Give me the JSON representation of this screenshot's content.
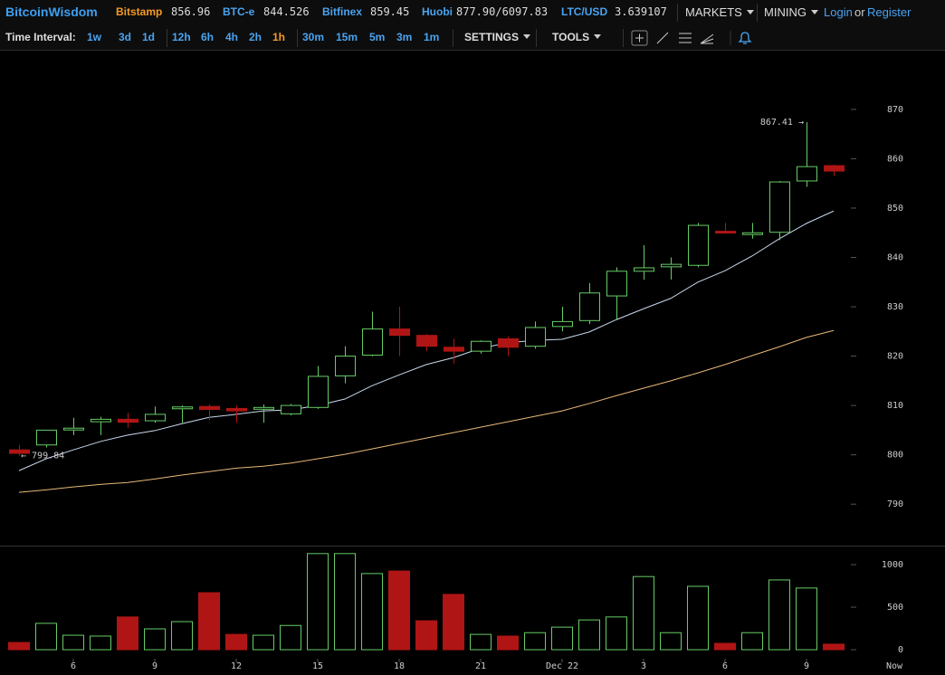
{
  "header": {
    "brand": "BitcoinWisdom",
    "tickers": [
      {
        "name": "Bitstamp",
        "price": "856.96"
      },
      {
        "name": "BTC-e",
        "price": "844.526"
      },
      {
        "name": "Bitfinex",
        "price": "859.45"
      },
      {
        "name": "Huobi",
        "price": "877.90/6097.83"
      },
      {
        "name": "LTC/USD",
        "price": "3.639107"
      }
    ],
    "menus": [
      "MARKETS",
      "MINING"
    ],
    "login": "Login",
    "or": "or",
    "register": "Register"
  },
  "toolbar": {
    "label": "Time Interval:",
    "intervals": [
      "1w",
      "3d",
      "1d",
      "12h",
      "6h",
      "4h",
      "2h",
      "1h",
      "30m",
      "15m",
      "5m",
      "3m",
      "1m"
    ],
    "active_interval": "1h",
    "settings": "SETTINGS",
    "tools": "TOOLS"
  },
  "chart_data": {
    "type": "candlestick",
    "categories": [
      null,
      null,
      "6",
      null,
      null,
      "9",
      null,
      null,
      "12",
      null,
      null,
      "15",
      null,
      null,
      "18",
      null,
      null,
      "21",
      null,
      null,
      "Dec 22",
      null,
      null,
      "3",
      null,
      null,
      "6",
      null,
      null,
      "9",
      null
    ],
    "x_end_label": "Now",
    "open": [
      801,
      802,
      805.1,
      806.7,
      807.2,
      806.9,
      809.4,
      809.8,
      809.4,
      809.3,
      808.3,
      809.6,
      816,
      820.2,
      825.5,
      824.2,
      821.8,
      821,
      823.5,
      822,
      826,
      827.2,
      832.2,
      837.2,
      838.1,
      838.4,
      845.3,
      844.8,
      845.1,
      855.5,
      858.6
    ],
    "high": [
      802,
      805,
      807.5,
      807.7,
      808.5,
      809.8,
      810,
      810.2,
      810,
      810.2,
      810.3,
      818,
      822,
      829,
      830,
      824.5,
      823.5,
      823.2,
      824,
      827,
      830,
      834.8,
      838,
      842.5,
      840,
      847,
      847,
      847,
      855.5,
      867.41,
      858.8
    ],
    "low": [
      799.84,
      801.5,
      804,
      804,
      805.5,
      806.5,
      806.5,
      807,
      806.5,
      806.5,
      808,
      809.3,
      814.5,
      820,
      820,
      821,
      818.5,
      820.5,
      820,
      821.5,
      825,
      826.5,
      827.5,
      835.5,
      835.5,
      838,
      845,
      843.8,
      843.5,
      854.3,
      856.5
    ],
    "close": [
      800.3,
      805,
      805.4,
      807.2,
      806.6,
      808.2,
      809.7,
      809.2,
      808.9,
      809.6,
      810,
      815.9,
      820,
      825.5,
      824.2,
      822,
      821,
      823,
      821.8,
      825.8,
      827,
      832.8,
      837.2,
      837.9,
      838.6,
      846.5,
      845.1,
      845,
      855.3,
      858.4,
      857.5
    ],
    "up_color": "#66cc66",
    "down_color": "#b01515",
    "ylim": [
      781.6,
      881.9
    ],
    "yticks": [
      790,
      800,
      810,
      820,
      830,
      840,
      850,
      860,
      870
    ],
    "ma_lines": [
      {
        "color": "#c8d8ec",
        "values": [
          796.8,
          799.2,
          801,
          802.7,
          804,
          804.9,
          806.3,
          807.6,
          808.2,
          808.9,
          809.1,
          810,
          811.3,
          814,
          816.2,
          818.3,
          819.7,
          821.6,
          822.7,
          823.2,
          823.4,
          824.9,
          827.4,
          829.6,
          831.7,
          835,
          837.3,
          840.3,
          843.8,
          846.9,
          849.4
        ]
      },
      {
        "color": "#e8b878",
        "values": [
          792.4,
          792.9,
          793.5,
          794,
          794.4,
          795.1,
          795.9,
          796.6,
          797.3,
          797.7,
          798.3,
          799.2,
          800.1,
          801.2,
          802.3,
          803.4,
          804.5,
          805.6,
          806.7,
          807.8,
          808.9,
          810.4,
          812,
          813.5,
          815,
          816.6,
          818.3,
          820.1,
          821.9,
          823.8,
          825.2
        ]
      }
    ],
    "annotations": {
      "max_label": "867.41 →",
      "min_label": "← 799.84"
    },
    "volume": {
      "values": [
        85,
        310,
        170,
        160,
        385,
        245,
        330,
        670,
        180,
        170,
        285,
        1130,
        1130,
        895,
        925,
        340,
        650,
        180,
        160,
        200,
        265,
        350,
        385,
        860,
        200,
        745,
        75,
        200,
        820,
        725,
        65
      ],
      "ylim": [
        -106,
        1213
      ],
      "yticks": [
        0,
        500,
        1000
      ]
    }
  }
}
